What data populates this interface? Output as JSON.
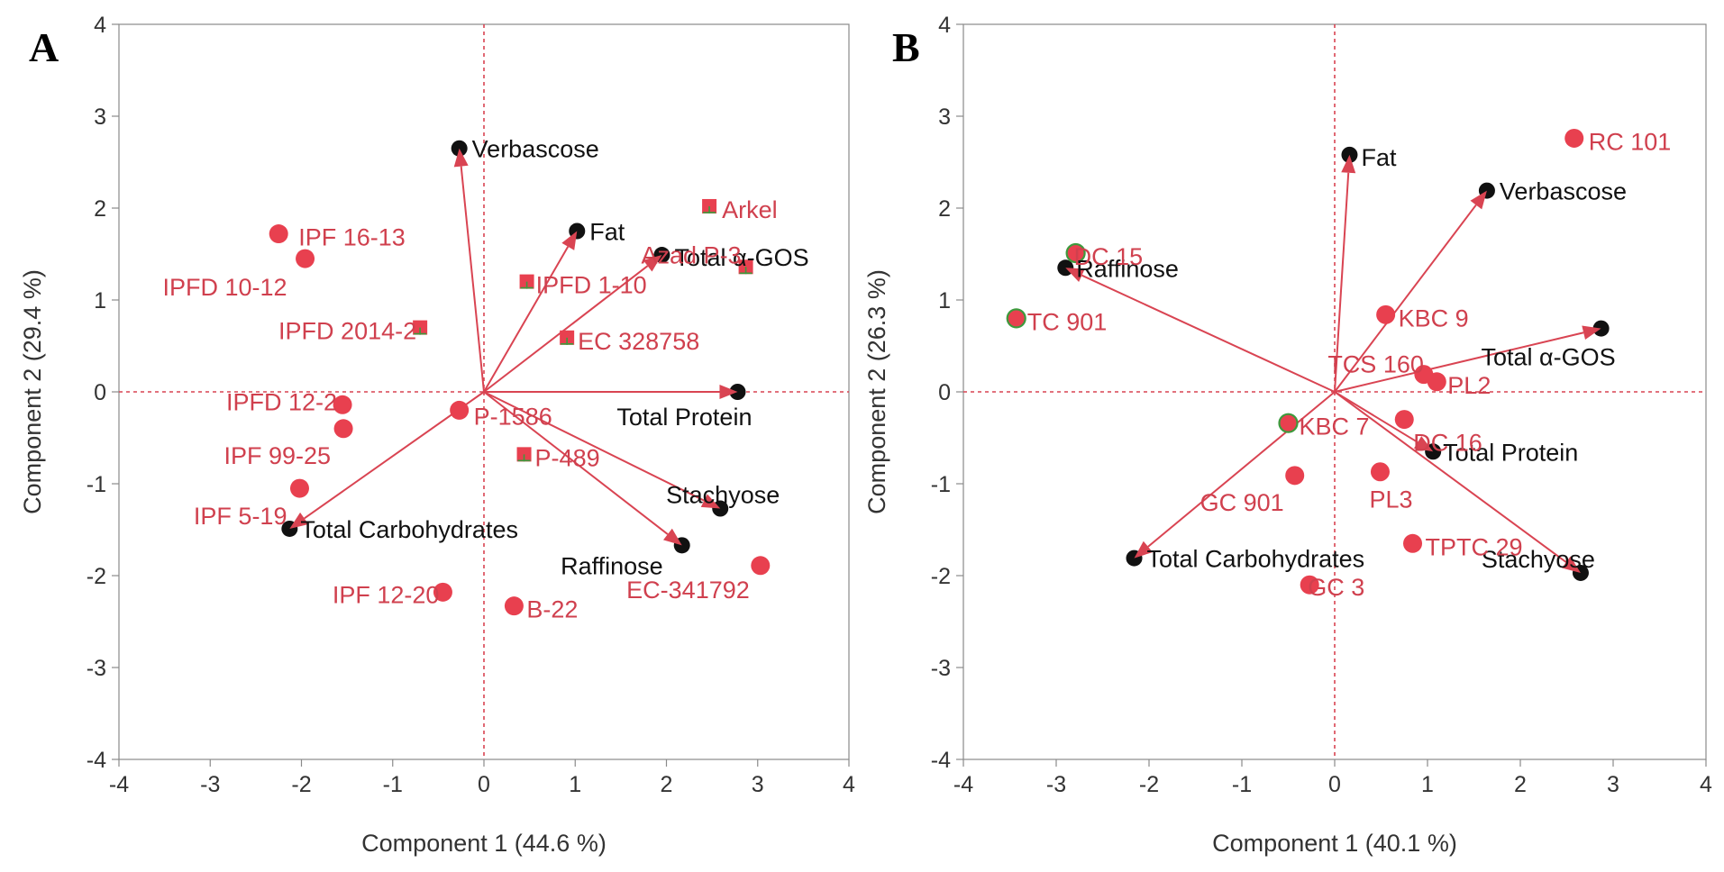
{
  "chart_data": [
    {
      "type": "scatter",
      "panel_label": "A",
      "xlabel": "Component 1  (44.6 %)",
      "ylabel": "Component 2  (29.4 %)",
      "xlim": [
        -4,
        4
      ],
      "ylim": [
        -4,
        4
      ],
      "xticks": [
        "-4",
        "-3",
        "-2",
        "-1",
        "0",
        "1",
        "2",
        "3",
        "4"
      ],
      "yticks": [
        "-4",
        "-3",
        "-2",
        "-1",
        "0",
        "1",
        "2",
        "3",
        "4"
      ],
      "colors": {
        "score": "#e8404f",
        "loading_label": "#111111",
        "score_label": "#d0404e",
        "arrow": "#d94452",
        "origin_line": "#d94452",
        "marker_cross": "#3d9a3d"
      },
      "loadings": [
        {
          "label": "Verbascose",
          "x": -0.27,
          "y": 2.65
        },
        {
          "label": "Fat",
          "x": 1.02,
          "y": 1.75
        },
        {
          "label": "Total α-GOS",
          "x": 1.95,
          "y": 1.49
        },
        {
          "label": "Total Protein",
          "x": 2.78,
          "y": 0.0
        },
        {
          "label": "Stachyose",
          "x": 2.59,
          "y": -1.27
        },
        {
          "label": "Raffinose",
          "x": 2.17,
          "y": -1.67
        },
        {
          "label": "Total Carbohydrates",
          "x": -2.13,
          "y": -1.49
        }
      ],
      "scores": [
        {
          "label": "IPF 16-13",
          "x": -2.25,
          "y": 1.72,
          "marker": "circle"
        },
        {
          "label": "IPFD 10-12",
          "x": -1.96,
          "y": 1.45,
          "marker": "circle"
        },
        {
          "label": "IPFD 2014-2",
          "x": -0.7,
          "y": 0.7,
          "marker": "square"
        },
        {
          "label": "IPFD 12-2",
          "x": -1.55,
          "y": -0.14,
          "marker": "circle"
        },
        {
          "label": "IPF 99-25",
          "x": -1.54,
          "y": -0.4,
          "marker": "circle"
        },
        {
          "label": "P-1586",
          "x": -0.27,
          "y": -0.2,
          "marker": "circle"
        },
        {
          "label": "IPF 5-19",
          "x": -2.02,
          "y": -1.05,
          "marker": "circle"
        },
        {
          "label": "IPF 12-20",
          "x": -0.45,
          "y": -2.18,
          "marker": "circle"
        },
        {
          "label": "B-22",
          "x": 0.33,
          "y": -2.33,
          "marker": "circle"
        },
        {
          "label": "EC-341792",
          "x": 3.03,
          "y": -1.89,
          "marker": "circle"
        },
        {
          "label": "Arkel",
          "x": 2.47,
          "y": 2.02,
          "marker": "square"
        },
        {
          "label": "Azad P-3",
          "x": 2.87,
          "y": 1.36,
          "marker": "square"
        },
        {
          "label": "IPFD 1-10",
          "x": 0.47,
          "y": 1.2,
          "marker": "square"
        },
        {
          "label": "EC 328758",
          "x": 0.91,
          "y": 0.59,
          "marker": "square"
        },
        {
          "label": "P-489",
          "x": 0.44,
          "y": -0.68,
          "marker": "square"
        }
      ]
    },
    {
      "type": "scatter",
      "panel_label": "B",
      "xlabel": "Component 1  (40.1 %)",
      "ylabel": "Component 2  (26.3 %)",
      "xlim": [
        -4,
        4
      ],
      "ylim": [
        -4,
        4
      ],
      "xticks": [
        "-4",
        "-3",
        "-2",
        "-1",
        "0",
        "1",
        "2",
        "3",
        "4"
      ],
      "yticks": [
        "-4",
        "-3",
        "-2",
        "-1",
        "0",
        "1",
        "2",
        "3",
        "4"
      ],
      "colors": {
        "score": "#e8404f",
        "loading_label": "#111111",
        "score_label": "#d0404e",
        "arrow": "#d94452",
        "origin_line": "#d94452",
        "marker_cross": "#3d9a3d"
      },
      "loadings": [
        {
          "label": "Fat",
          "x": 0.16,
          "y": 2.58
        },
        {
          "label": "Verbascose",
          "x": 1.64,
          "y": 2.19
        },
        {
          "label": "Raffinose",
          "x": -2.9,
          "y": 1.35
        },
        {
          "label": "Total α-GOS",
          "x": 2.87,
          "y": 0.69
        },
        {
          "label": "Total Protein",
          "x": 1.06,
          "y": -0.65
        },
        {
          "label": "Stachyose",
          "x": 2.65,
          "y": -1.97
        },
        {
          "label": "Total Carbohydrates",
          "x": -2.16,
          "y": -1.81
        }
      ],
      "scores": [
        {
          "label": "RC 101",
          "x": 2.58,
          "y": 2.76,
          "marker": "circle"
        },
        {
          "label": "DC 15",
          "x": -2.79,
          "y": 1.51,
          "marker": "circle-green"
        },
        {
          "label": "TC 901",
          "x": -3.43,
          "y": 0.8,
          "marker": "circle-green"
        },
        {
          "label": "KBC 9",
          "x": 0.55,
          "y": 0.84,
          "marker": "circle"
        },
        {
          "label": "TCS 160",
          "x": 0.96,
          "y": 0.19,
          "marker": "circle"
        },
        {
          "label": "PL2",
          "x": 1.1,
          "y": 0.11,
          "marker": "circle"
        },
        {
          "label": "KBC 7",
          "x": -0.5,
          "y": -0.34,
          "marker": "circle-green"
        },
        {
          "label": "DC 16",
          "x": 0.75,
          "y": -0.3,
          "marker": "circle"
        },
        {
          "label": "GC 901",
          "x": -0.43,
          "y": -0.91,
          "marker": "circle"
        },
        {
          "label": "PL3",
          "x": 0.49,
          "y": -0.87,
          "marker": "circle"
        },
        {
          "label": "TPTC 29",
          "x": 0.84,
          "y": -1.65,
          "marker": "circle"
        },
        {
          "label": "GC 3",
          "x": -0.27,
          "y": -2.1,
          "marker": "circle"
        }
      ]
    }
  ]
}
